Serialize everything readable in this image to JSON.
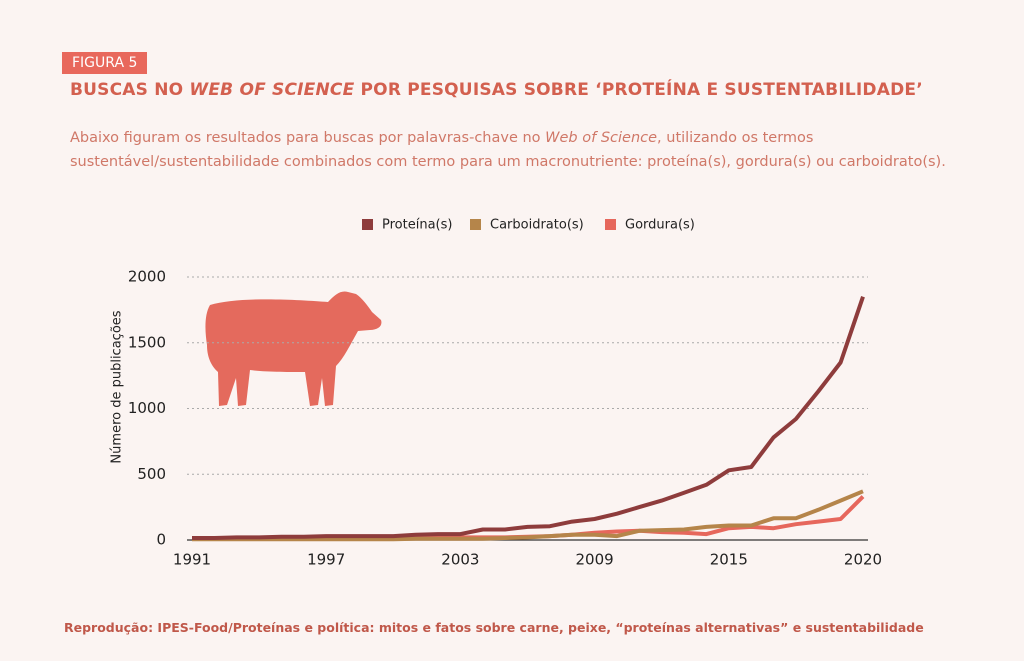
{
  "header": {
    "figure_label": "FIGURA 5",
    "title": [
      "BUSCAS NO ",
      "WEB OF SCIENCE",
      " POR PESQUISAS SOBRE ‘PROTEÍNA E SUSTENTABILIDADE’"
    ],
    "subtitle": [
      "Abaixo figuram os resultados para buscas por palavras-chave no ",
      "Web of Science",
      ", utilizando os termos sustentável/sustentabilidade combinados com termo para um macronutriente: proteína(s), gordura(s) ou carboidrato(s)."
    ]
  },
  "chart_data": {
    "type": "line",
    "ylabel": "Número de publicações",
    "categories": [
      "1991",
      null,
      null,
      null,
      null,
      null,
      "1997",
      null,
      null,
      null,
      null,
      null,
      "2003",
      null,
      null,
      null,
      null,
      null,
      "2009",
      null,
      null,
      null,
      null,
      null,
      "2015",
      null,
      null,
      null,
      null,
      null,
      "2020"
    ],
    "series": [
      {
        "name": "Proteína(s)",
        "color": "#8e3c3c",
        "values": [
          15,
          15,
          20,
          20,
          25,
          25,
          30,
          30,
          30,
          30,
          40,
          45,
          45,
          80,
          80,
          100,
          105,
          140,
          160,
          200,
          250,
          300,
          360,
          420,
          530,
          555,
          780,
          920,
          1130,
          1350,
          1850
        ]
      },
      {
        "name": "Carboidrato(s)",
        "color": "#b5854a",
        "values": [
          5,
          5,
          5,
          5,
          5,
          5,
          5,
          5,
          5,
          5,
          10,
          10,
          10,
          10,
          15,
          20,
          30,
          40,
          40,
          30,
          70,
          75,
          80,
          100,
          110,
          110,
          165,
          165,
          230,
          300,
          370
        ]
      },
      {
        "name": "Gordura(s)",
        "color": "#e6675c",
        "values": [
          10,
          10,
          10,
          10,
          10,
          10,
          10,
          10,
          15,
          15,
          15,
          15,
          20,
          20,
          20,
          25,
          30,
          40,
          55,
          65,
          70,
          60,
          55,
          45,
          90,
          100,
          90,
          120,
          140,
          160,
          330
        ]
      }
    ],
    "ylim": [
      0,
      2000
    ],
    "yticks": [
      0,
      500,
      1000,
      1500,
      2000
    ],
    "grid": true,
    "legend": "top"
  },
  "source": "Reprodução: IPES-Food/Proteínas e política: mitos e fatos sobre carne, peixe, “proteínas alternativas” e sustentabilidade"
}
